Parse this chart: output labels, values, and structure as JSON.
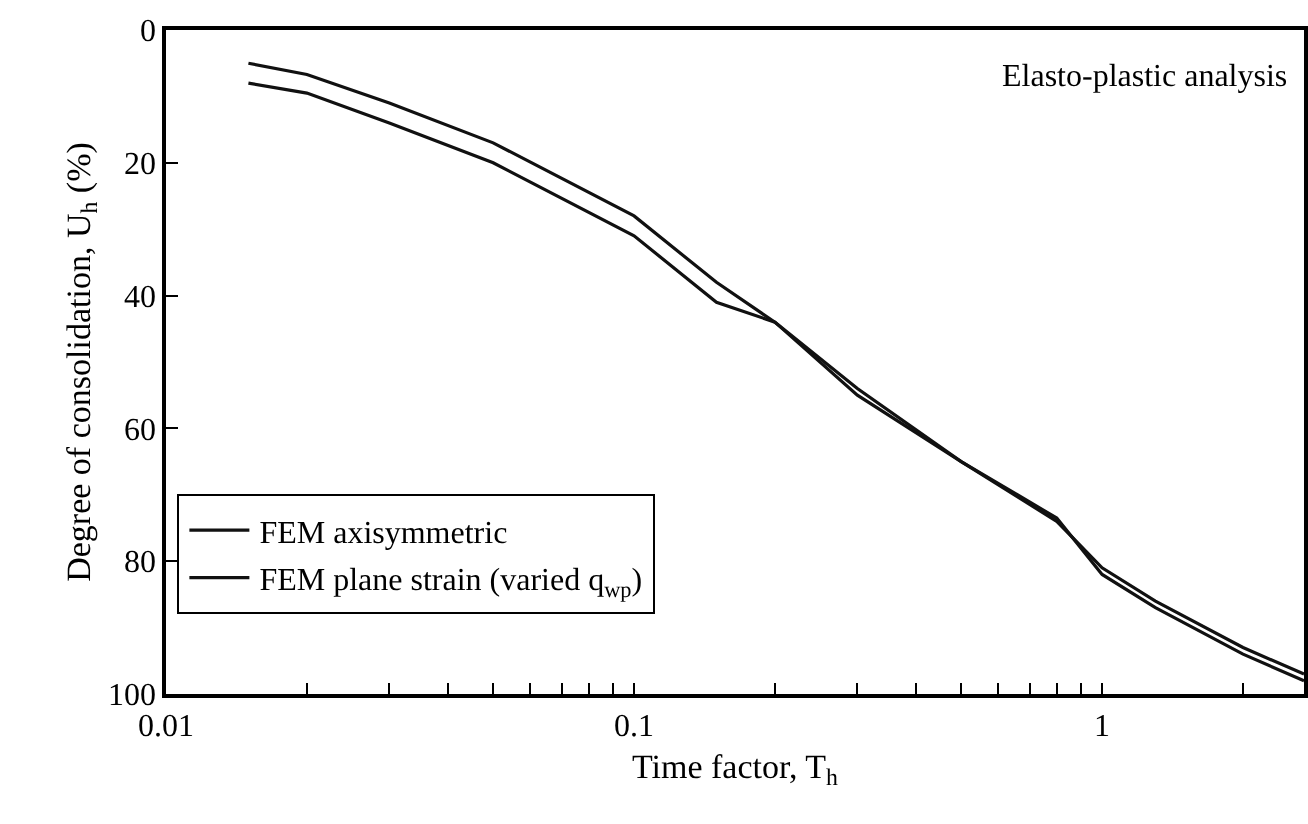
{
  "chart_data": {
    "type": "line",
    "xlabel": "Time factor, T$_{h}$",
    "ylabel": "Degree of consolidation, U$_{h}$ (%)",
    "log": "x",
    "grid": false,
    "legend": "bottom left",
    "line_style": "solid",
    "marker": "none",
    "x": [
      0.015,
      0.02,
      0.03,
      0.05,
      0.1,
      0.15,
      0.2,
      0.3,
      0.5,
      0.8,
      1,
      1.3,
      2,
      2.7
    ],
    "series": [
      {
        "name": "FEM axisymmetric",
        "color": "#111111",
        "values": [
          5,
          6.7,
          11,
          17,
          28,
          38,
          44,
          55,
          65,
          74,
          81,
          86,
          93,
          97
        ]
      },
      {
        "name": "FEM plane strain (varied q$_{wp}$)",
        "color": "#111111",
        "values": [
          8,
          9.5,
          14,
          20,
          31,
          41,
          44,
          54,
          65,
          73.5,
          82,
          87,
          94,
          98
        ]
      }
    ],
    "xlim": [
      0.01,
      2.7
    ],
    "ylim": [
      100,
      0
    ],
    "xticks": [
      0.01,
      {
        "value": 0.02,
        "label": null
      },
      {
        "value": 0.03,
        "label": null
      },
      {
        "value": 0.04,
        "label": null
      },
      {
        "value": 0.05,
        "label": null
      },
      {
        "value": 0.06,
        "label": null
      },
      {
        "value": 0.07,
        "label": null
      },
      {
        "value": 0.08,
        "label": null
      },
      {
        "value": 0.09,
        "label": null
      },
      0.1,
      {
        "value": 0.2,
        "label": null
      },
      {
        "value": 0.3,
        "label": null
      },
      {
        "value": 0.4,
        "label": null
      },
      {
        "value": 0.5,
        "label": null
      },
      {
        "value": 0.6,
        "label": null
      },
      {
        "value": 0.7,
        "label": null
      },
      {
        "value": 0.8,
        "label": null
      },
      {
        "value": 0.9,
        "label": null
      },
      1,
      {
        "value": 2,
        "label": null
      }
    ],
    "yticks": [
      0,
      20,
      40,
      60,
      80,
      100
    ],
    "annotations": [
      "Elasto-plastic analysis"
    ]
  }
}
